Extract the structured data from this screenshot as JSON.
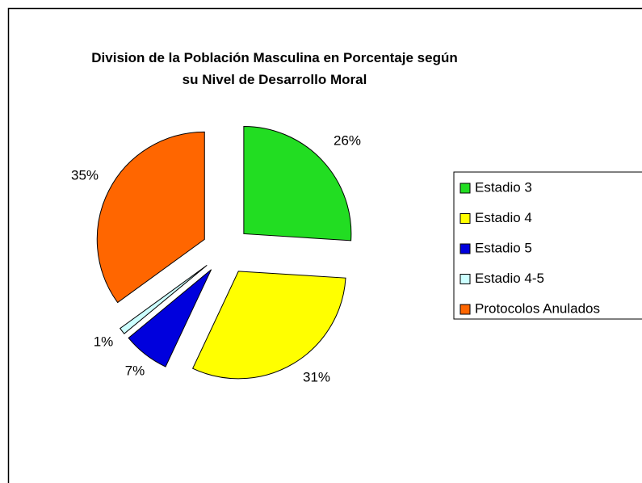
{
  "chart_data": {
    "type": "pie",
    "title": "Division de la Población Masculina en Porcentaje según su Nivel de Desarrollo Moral",
    "categories": [
      "Estadio 3",
      "Estadio 4",
      "Estadio 5",
      "Estadio 4-5",
      "Protocolos Anulados"
    ],
    "values": [
      26,
      31,
      7,
      1,
      35
    ],
    "value_labels": [
      "26%",
      "31%",
      "7%",
      "1%",
      "35%"
    ],
    "colors": [
      "#22dd22",
      "#ffff00",
      "#0000dd",
      "#ccffff",
      "#ff6600"
    ],
    "legend": "right"
  }
}
